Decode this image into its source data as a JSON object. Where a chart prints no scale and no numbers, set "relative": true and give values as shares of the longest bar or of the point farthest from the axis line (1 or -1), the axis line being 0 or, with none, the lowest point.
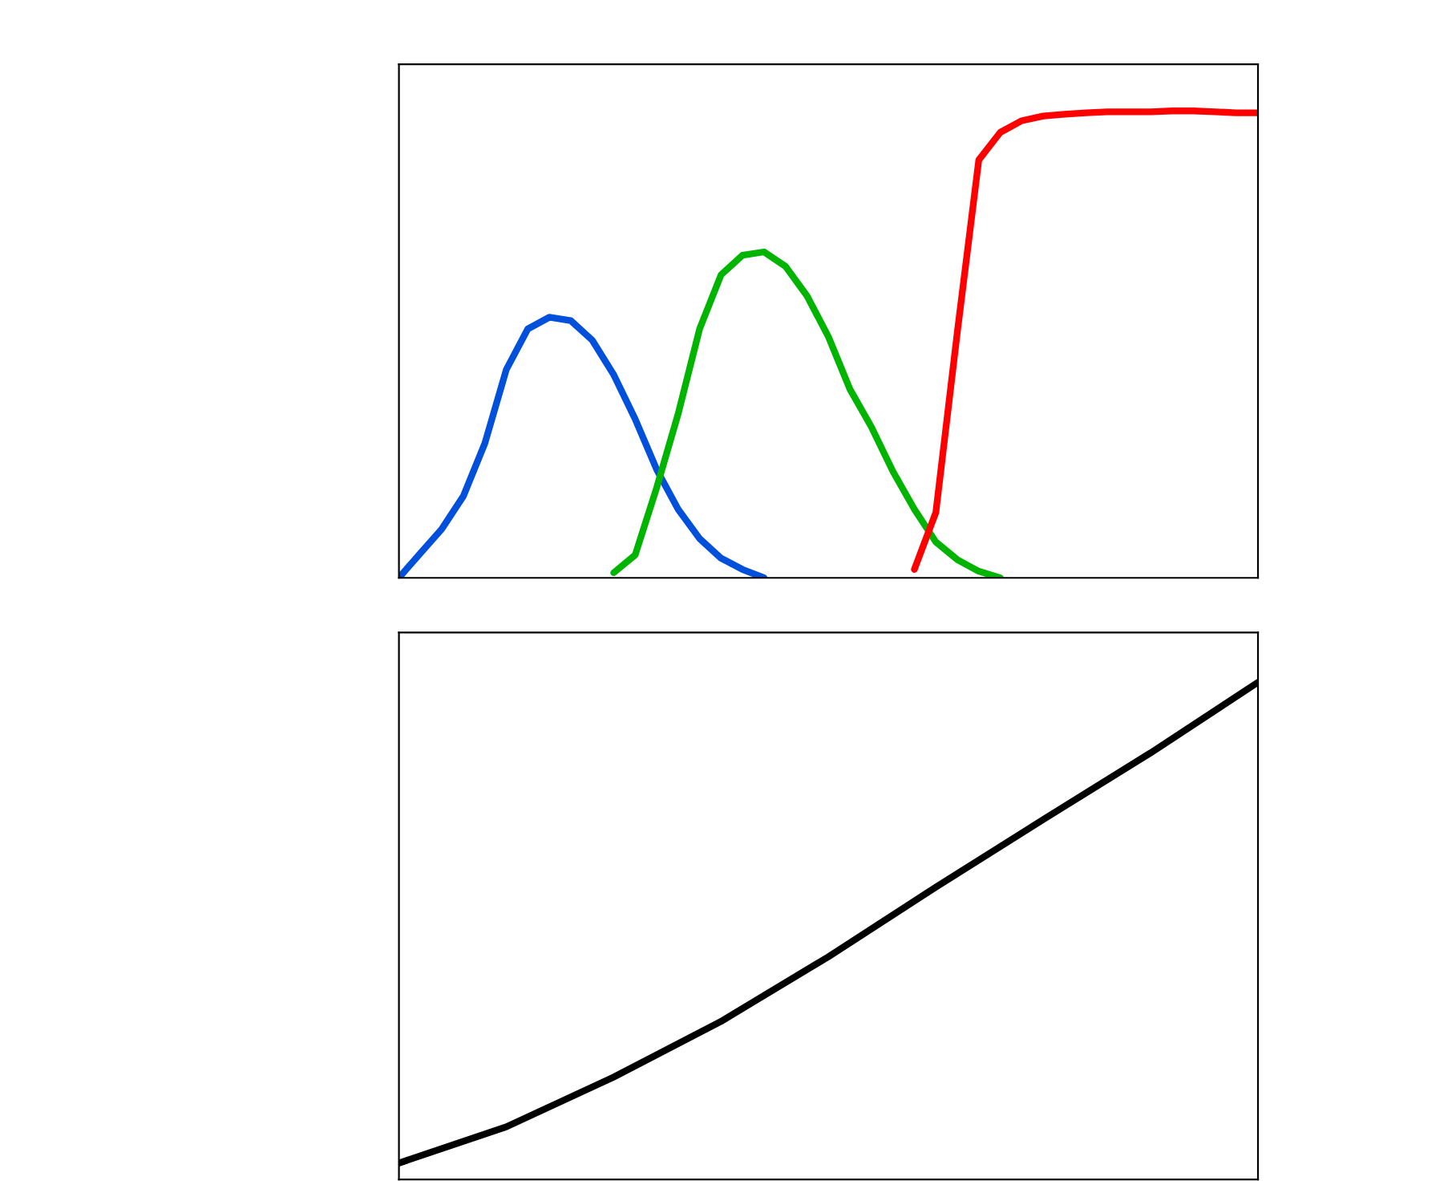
{
  "chart_data": [
    {
      "type": "line",
      "relative": true,
      "grid": false,
      "legend": false,
      "categories": [
        null,
        null,
        null,
        null,
        null,
        null,
        null,
        null,
        null,
        null,
        null,
        null,
        null,
        null,
        null,
        null,
        null,
        null,
        null,
        null,
        null,
        null,
        null,
        null,
        null,
        null,
        null,
        null,
        null,
        null,
        null,
        null,
        null,
        null,
        null,
        null,
        null,
        null,
        null,
        null,
        null
      ],
      "series": [
        {
          "color": "#0050dc",
          "values": [
            0,
            0.053,
            0.105,
            0.175,
            0.288,
            0.446,
            0.533,
            0.558,
            0.551,
            0.509,
            0.435,
            0.34,
            0.232,
            0.147,
            0.084,
            0.042,
            0.018,
            0,
            null,
            null,
            null,
            null,
            null,
            null,
            null,
            null,
            null,
            null,
            null,
            null,
            null,
            null,
            null,
            null,
            null,
            null,
            null,
            null,
            null,
            null,
            null
          ]
        },
        {
          "color": "#00b400",
          "values": [
            null,
            null,
            null,
            null,
            null,
            null,
            null,
            null,
            null,
            null,
            0.011,
            0.049,
            0.193,
            0.351,
            0.533,
            0.649,
            0.691,
            0.698,
            0.667,
            0.604,
            0.516,
            0.404,
            0.323,
            0.228,
            0.147,
            0.077,
            0.039,
            0.014,
            0,
            null,
            null,
            null,
            null,
            null,
            null,
            null,
            null,
            null,
            null,
            null,
            null
          ]
        },
        {
          "color": "#ff0000",
          "values": [
            null,
            null,
            null,
            null,
            null,
            null,
            null,
            null,
            null,
            null,
            null,
            null,
            null,
            null,
            null,
            null,
            null,
            null,
            null,
            null,
            null,
            null,
            null,
            null,
            0.018,
            0.14,
            0.526,
            0.895,
            0.954,
            0.979,
            0.989,
            0.993,
            0.996,
            0.998,
            0.998,
            0.998,
            1,
            1,
            0.998,
            0.996,
            0.996
          ]
        }
      ]
    },
    {
      "type": "line",
      "relative": true,
      "grid": false,
      "legend": false,
      "categories": [
        null,
        null,
        null,
        null,
        null,
        null,
        null,
        null,
        null
      ],
      "series": [
        {
          "color": "#000000",
          "values": [
            0.033,
            0.106,
            0.206,
            0.318,
            0.448,
            0.588,
            0.724,
            0.858,
            1
          ]
        }
      ]
    }
  ]
}
